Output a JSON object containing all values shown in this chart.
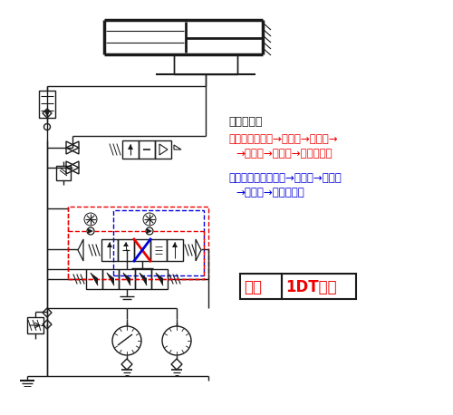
{
  "background_color": "#ffffff",
  "quick_feed_label": "快速进给：",
  "line1_red": "进油路：滤油器→变量泵→单向阀→",
  "line2_red": "→换向阀→行程阀→液压缸左腔",
  "line3_blue": "回油路：液压缸右腔→换向阀→单向阀",
  "line4_blue": "→行程阀→液压缸左腔",
  "start_label_left": "启动",
  "start_label_right": "1DT通电",
  "red_color": "#ee0000",
  "blue_color": "#0000dd",
  "black_color": "#1a1a1a",
  "gray_color": "#888888"
}
